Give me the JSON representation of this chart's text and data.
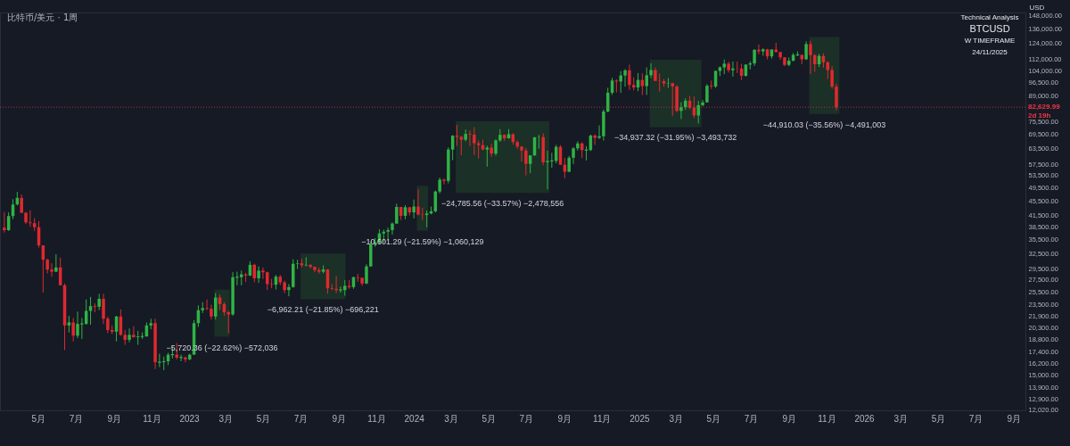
{
  "chart_data": {
    "type": "candlestick",
    "ylabel": "USD",
    "log": true,
    "ylim": [
      12000,
      151000
    ],
    "yticks": [
      {
        "value": 148000,
        "label": "148,000.00"
      },
      {
        "value": 136000,
        "label": "136,000.00"
      },
      {
        "value": 124000,
        "label": "124,000.00"
      },
      {
        "value": 112000,
        "label": "112,000.00"
      },
      {
        "value": 104000,
        "label": "104,000.00"
      },
      {
        "value": 96500,
        "label": "96,500.00"
      },
      {
        "value": 89000,
        "label": "89,000.00"
      },
      {
        "value": 75500,
        "label": "75,500.00"
      },
      {
        "value": 69500,
        "label": "69,500.00"
      },
      {
        "value": 63500,
        "label": "63,500.00"
      },
      {
        "value": 57500,
        "label": "57,500.00"
      },
      {
        "value": 53500,
        "label": "53,500.00"
      },
      {
        "value": 49500,
        "label": "49,500.00"
      },
      {
        "value": 45500,
        "label": "45,500.00"
      },
      {
        "value": 41500,
        "label": "41,500.00"
      },
      {
        "value": 38500,
        "label": "38,500.00"
      },
      {
        "value": 35500,
        "label": "35,500.00"
      },
      {
        "value": 32500,
        "label": "32,500.00"
      },
      {
        "value": 29500,
        "label": "29,500.00"
      },
      {
        "value": 27500,
        "label": "27,500.00"
      },
      {
        "value": 25500,
        "label": "25,500.00"
      },
      {
        "value": 23500,
        "label": "23,500.00"
      },
      {
        "value": 21900,
        "label": "21,900.00"
      },
      {
        "value": 20300,
        "label": "20,300.00"
      },
      {
        "value": 18800,
        "label": "18,800.00"
      },
      {
        "value": 17400,
        "label": "17,400.00"
      },
      {
        "value": 16200,
        "label": "16,200.00"
      },
      {
        "value": 15000,
        "label": "15,000.00"
      },
      {
        "value": 13900,
        "label": "13,900.00"
      },
      {
        "value": 12900,
        "label": "12,900.00"
      },
      {
        "value": 12020,
        "label": "12,020.00"
      }
    ],
    "xlim": [
      "2022-02-28",
      "2026-09-20"
    ],
    "xticks": [
      {
        "value": "2022-05-01",
        "label": "5月"
      },
      {
        "value": "2022-07-01",
        "label": "7月"
      },
      {
        "value": "2022-09-01",
        "label": "9月"
      },
      {
        "value": "2022-11-01",
        "label": "11月"
      },
      {
        "value": "2023-01-01",
        "label": "2023"
      },
      {
        "value": "2023-03-01",
        "label": "3月"
      },
      {
        "value": "2023-05-01",
        "label": "5月"
      },
      {
        "value": "2023-07-01",
        "label": "7月"
      },
      {
        "value": "2023-09-01",
        "label": "9月"
      },
      {
        "value": "2023-11-01",
        "label": "11月"
      },
      {
        "value": "2024-01-01",
        "label": "2024"
      },
      {
        "value": "2024-03-01",
        "label": "3月"
      },
      {
        "value": "2024-05-01",
        "label": "5月"
      },
      {
        "value": "2024-07-01",
        "label": "7月"
      },
      {
        "value": "2024-09-01",
        "label": "9月"
      },
      {
        "value": "2024-11-01",
        "label": "11月"
      },
      {
        "value": "2025-01-01",
        "label": "2025"
      },
      {
        "value": "2025-03-01",
        "label": "3月"
      },
      {
        "value": "2025-05-01",
        "label": "5月"
      },
      {
        "value": "2025-07-01",
        "label": "7月"
      },
      {
        "value": "2025-09-01",
        "label": "9月"
      },
      {
        "value": "2025-11-01",
        "label": "11月"
      },
      {
        "value": "2026-01-01",
        "label": "2026"
      },
      {
        "value": "2026-03-01",
        "label": "3月"
      },
      {
        "value": "2026-05-01",
        "label": "5月"
      },
      {
        "value": "2026-07-01",
        "label": "7月"
      },
      {
        "value": "2026-09-01",
        "label": "9月"
      }
    ],
    "x": [
      "2022-03-07",
      "2022-03-14",
      "2022-03-21",
      "2022-03-28",
      "2022-04-04",
      "2022-04-11",
      "2022-04-18",
      "2022-04-25",
      "2022-05-02",
      "2022-05-09",
      "2022-05-16",
      "2022-05-23",
      "2022-05-30",
      "2022-06-06",
      "2022-06-13",
      "2022-06-20",
      "2022-06-27",
      "2022-07-04",
      "2022-07-11",
      "2022-07-18",
      "2022-07-25",
      "2022-08-01",
      "2022-08-08",
      "2022-08-15",
      "2022-08-22",
      "2022-08-29",
      "2022-09-05",
      "2022-09-12",
      "2022-09-19",
      "2022-09-26",
      "2022-10-03",
      "2022-10-10",
      "2022-10-17",
      "2022-10-24",
      "2022-10-31",
      "2022-11-07",
      "2022-11-14",
      "2022-11-21",
      "2022-11-28",
      "2022-12-05",
      "2022-12-12",
      "2022-12-19",
      "2022-12-26",
      "2023-01-02",
      "2023-01-09",
      "2023-01-16",
      "2023-01-23",
      "2023-01-30",
      "2023-02-06",
      "2023-02-13",
      "2023-02-20",
      "2023-02-27",
      "2023-03-06",
      "2023-03-13",
      "2023-03-20",
      "2023-03-27",
      "2023-04-03",
      "2023-04-10",
      "2023-04-17",
      "2023-04-24",
      "2023-05-01",
      "2023-05-08",
      "2023-05-15",
      "2023-05-22",
      "2023-05-29",
      "2023-06-05",
      "2023-06-12",
      "2023-06-19",
      "2023-06-26",
      "2023-07-03",
      "2023-07-10",
      "2023-07-17",
      "2023-07-24",
      "2023-07-31",
      "2023-08-07",
      "2023-08-14",
      "2023-08-21",
      "2023-08-28",
      "2023-09-04",
      "2023-09-11",
      "2023-09-18",
      "2023-09-25",
      "2023-10-02",
      "2023-10-09",
      "2023-10-16",
      "2023-10-23",
      "2023-10-30",
      "2023-11-06",
      "2023-11-13",
      "2023-11-20",
      "2023-11-27",
      "2023-12-04",
      "2023-12-11",
      "2023-12-18",
      "2023-12-25",
      "2024-01-01",
      "2024-01-08",
      "2024-01-15",
      "2024-01-22",
      "2024-01-29",
      "2024-02-05",
      "2024-02-12",
      "2024-02-19",
      "2024-02-26",
      "2024-03-04",
      "2024-03-11",
      "2024-03-18",
      "2024-03-25",
      "2024-04-01",
      "2024-04-08",
      "2024-04-15",
      "2024-04-22",
      "2024-04-29",
      "2024-05-06",
      "2024-05-13",
      "2024-05-20",
      "2024-05-27",
      "2024-06-03",
      "2024-06-10",
      "2024-06-17",
      "2024-06-24",
      "2024-07-01",
      "2024-07-08",
      "2024-07-15",
      "2024-07-22",
      "2024-07-29",
      "2024-08-05",
      "2024-08-12",
      "2024-08-19",
      "2024-08-26",
      "2024-09-02",
      "2024-09-09",
      "2024-09-16",
      "2024-09-23",
      "2024-09-30",
      "2024-10-07",
      "2024-10-14",
      "2024-10-21",
      "2024-10-28",
      "2024-11-04",
      "2024-11-11",
      "2024-11-18",
      "2024-11-25",
      "2024-12-02",
      "2024-12-09",
      "2024-12-16",
      "2024-12-23",
      "2024-12-30",
      "2025-01-06",
      "2025-01-13",
      "2025-01-20",
      "2025-01-27",
      "2025-02-03",
      "2025-02-10",
      "2025-02-17",
      "2025-02-24",
      "2025-03-03",
      "2025-03-10",
      "2025-03-17",
      "2025-03-24",
      "2025-03-31",
      "2025-04-07",
      "2025-04-14",
      "2025-04-21",
      "2025-04-28",
      "2025-05-05",
      "2025-05-12",
      "2025-05-19",
      "2025-05-26",
      "2025-06-02",
      "2025-06-09",
      "2025-06-16",
      "2025-06-23",
      "2025-06-30",
      "2025-07-07",
      "2025-07-14",
      "2025-07-21",
      "2025-07-28",
      "2025-08-04",
      "2025-08-11",
      "2025-08-18",
      "2025-08-25",
      "2025-09-01",
      "2025-09-08",
      "2025-09-15",
      "2025-09-22",
      "2025-09-29",
      "2025-10-06",
      "2025-10-13",
      "2025-10-20",
      "2025-10-27",
      "2025-11-03",
      "2025-11-10",
      "2025-11-17"
    ],
    "ohlc": [
      [
        38400,
        42400,
        37200,
        37800
      ],
      [
        37800,
        42300,
        37600,
        41300
      ],
      [
        41300,
        46000,
        40500,
        44500
      ],
      [
        44500,
        48200,
        44200,
        46400
      ],
      [
        46400,
        47400,
        42100,
        42200
      ],
      [
        42200,
        42400,
        39300,
        39700
      ],
      [
        39700,
        42900,
        38600,
        39500
      ],
      [
        39500,
        40800,
        37600,
        38500
      ],
      [
        38500,
        40000,
        33800,
        34300
      ],
      [
        34300,
        34300,
        25400,
        31300
      ],
      [
        31300,
        31500,
        28700,
        29400
      ],
      [
        29400,
        30600,
        28100,
        29000
      ],
      [
        29000,
        32400,
        29000,
        29800
      ],
      [
        29800,
        31700,
        26600,
        26600
      ],
      [
        26600,
        26900,
        17600,
        20600
      ],
      [
        20600,
        21900,
        19700,
        21000
      ],
      [
        21000,
        21600,
        18600,
        19300
      ],
      [
        19300,
        22500,
        19000,
        20800
      ],
      [
        20800,
        21600,
        18900,
        20800
      ],
      [
        20800,
        24300,
        20700,
        22600
      ],
      [
        22600,
        24700,
        20700,
        23300
      ],
      [
        23300,
        23700,
        22400,
        23200
      ],
      [
        23200,
        25200,
        22700,
        24400
      ],
      [
        24400,
        25200,
        20800,
        21500
      ],
      [
        21500,
        21800,
        19600,
        20000
      ],
      [
        20000,
        20600,
        19500,
        19800
      ],
      [
        19800,
        21900,
        18600,
        21800
      ],
      [
        21800,
        22800,
        19300,
        19400
      ],
      [
        19400,
        20000,
        18200,
        18800
      ],
      [
        18800,
        20200,
        18500,
        19400
      ],
      [
        19400,
        20500,
        19100,
        19100
      ],
      [
        19100,
        19900,
        18200,
        19200
      ],
      [
        19200,
        19700,
        18900,
        19200
      ],
      [
        19200,
        21000,
        19200,
        20600
      ],
      [
        20600,
        21500,
        20100,
        20900
      ],
      [
        20900,
        21500,
        15600,
        16300
      ],
      [
        16300,
        17200,
        15800,
        16300
      ],
      [
        16300,
        16900,
        15500,
        16400
      ],
      [
        16400,
        17300,
        16000,
        17100
      ],
      [
        17100,
        18000,
        16700,
        17100
      ],
      [
        17100,
        18400,
        16600,
        16800
      ],
      [
        16800,
        17100,
        16400,
        16800
      ],
      [
        16800,
        16900,
        16300,
        16600
      ],
      [
        16600,
        17200,
        16500,
        17100
      ],
      [
        17100,
        21300,
        17100,
        20900
      ],
      [
        20900,
        23400,
        20400,
        22700
      ],
      [
        22700,
        23900,
        22300,
        23000
      ],
      [
        23000,
        24300,
        22700,
        22900
      ],
      [
        22900,
        23500,
        21400,
        21800
      ],
      [
        21800,
        25300,
        21400,
        24600
      ],
      [
        24600,
        25100,
        22700,
        23600
      ],
      [
        23600,
        23900,
        21900,
        22400
      ],
      [
        22400,
        22600,
        19600,
        22100
      ],
      [
        22100,
        28900,
        21900,
        28000
      ],
      [
        28000,
        29000,
        26600,
        28000
      ],
      [
        28000,
        29200,
        26600,
        28500
      ],
      [
        28500,
        28800,
        27200,
        28300
      ],
      [
        28300,
        31000,
        28200,
        30300
      ],
      [
        30300,
        30500,
        27100,
        27800
      ],
      [
        27800,
        30000,
        27000,
        29200
      ],
      [
        29200,
        29800,
        27700,
        28900
      ],
      [
        28900,
        29000,
        25800,
        26800
      ],
      [
        26800,
        27700,
        26100,
        26700
      ],
      [
        26700,
        28400,
        25900,
        28100
      ],
      [
        28100,
        28400,
        26600,
        27100
      ],
      [
        27100,
        27400,
        25300,
        25800
      ],
      [
        25800,
        26800,
        24800,
        26300
      ],
      [
        26300,
        31400,
        26200,
        30500
      ],
      [
        30500,
        31300,
        29500,
        30600
      ],
      [
        30600,
        31500,
        29800,
        30200
      ],
      [
        30200,
        31800,
        30000,
        30300
      ],
      [
        30300,
        30400,
        29600,
        29900
      ],
      [
        29900,
        30000,
        28900,
        29300
      ],
      [
        29300,
        29800,
        28600,
        29000
      ],
      [
        29000,
        30200,
        28700,
        29400
      ],
      [
        29400,
        29500,
        25200,
        26100
      ],
      [
        26100,
        26800,
        25800,
        26000
      ],
      [
        26000,
        28200,
        25300,
        25800
      ],
      [
        25800,
        26400,
        25400,
        25800
      ],
      [
        25800,
        27500,
        24900,
        26500
      ],
      [
        26500,
        27500,
        26000,
        26300
      ],
      [
        26300,
        28100,
        26000,
        28000
      ],
      [
        28000,
        28600,
        27200,
        27900
      ],
      [
        27900,
        27900,
        26500,
        26900
      ],
      [
        26900,
        30400,
        26800,
        30000
      ],
      [
        30000,
        35200,
        29900,
        34500
      ],
      [
        34500,
        35900,
        34000,
        35000
      ],
      [
        35000,
        38000,
        34500,
        37000
      ],
      [
        37000,
        37900,
        34800,
        37400
      ],
      [
        37400,
        38400,
        35600,
        37800
      ],
      [
        37800,
        39700,
        36700,
        39400
      ],
      [
        39400,
        44700,
        39300,
        43800
      ],
      [
        43800,
        43800,
        40300,
        41400
      ],
      [
        41400,
        44300,
        40500,
        43700
      ],
      [
        43700,
        43800,
        41500,
        42300
      ],
      [
        42300,
        45900,
        40700,
        43900
      ],
      [
        43900,
        49000,
        41500,
        41700
      ],
      [
        41700,
        43500,
        40300,
        41600
      ],
      [
        41600,
        42800,
        38500,
        42000
      ],
      [
        42000,
        43900,
        41800,
        42600
      ],
      [
        42600,
        48600,
        42300,
        48300
      ],
      [
        48300,
        52800,
        47700,
        52100
      ],
      [
        52100,
        52500,
        50600,
        51700
      ],
      [
        51700,
        64000,
        50900,
        63100
      ],
      [
        63100,
        69200,
        59000,
        68900
      ],
      [
        68900,
        73800,
        64600,
        68400
      ],
      [
        68400,
        68900,
        60800,
        67200
      ],
      [
        67200,
        71700,
        66500,
        69700
      ],
      [
        69700,
        71300,
        64500,
        69400
      ],
      [
        69400,
        72800,
        60900,
        65700
      ],
      [
        65700,
        66900,
        59600,
        64900
      ],
      [
        64900,
        67200,
        62800,
        63100
      ],
      [
        63100,
        64700,
        56600,
        63900
      ],
      [
        63900,
        65500,
        60200,
        61500
      ],
      [
        61500,
        67400,
        60700,
        66900
      ],
      [
        66900,
        71900,
        66300,
        69300
      ],
      [
        69300,
        69500,
        66700,
        67800
      ],
      [
        67800,
        71900,
        67600,
        69600
      ],
      [
        69600,
        70000,
        65100,
        66200
      ],
      [
        66200,
        66900,
        63400,
        64300
      ],
      [
        64300,
        64500,
        58400,
        62700
      ],
      [
        62700,
        63800,
        53500,
        57600
      ],
      [
        57600,
        60800,
        54300,
        60800
      ],
      [
        60800,
        68400,
        60600,
        68200
      ],
      [
        68200,
        69300,
        63400,
        68300
      ],
      [
        68300,
        70000,
        57200,
        58200
      ],
      [
        58200,
        62700,
        49000,
        58700
      ],
      [
        58700,
        61800,
        56200,
        58700
      ],
      [
        58700,
        65000,
        57800,
        64200
      ],
      [
        64200,
        64900,
        57200,
        57300
      ],
      [
        57300,
        59800,
        52600,
        54800
      ],
      [
        54800,
        60600,
        54600,
        59900
      ],
      [
        59900,
        64100,
        57600,
        63600
      ],
      [
        63600,
        66500,
        62700,
        65600
      ],
      [
        65600,
        66100,
        59800,
        62900
      ],
      [
        62900,
        64500,
        58900,
        62900
      ],
      [
        62900,
        69400,
        62500,
        69000
      ],
      [
        69000,
        69500,
        65000,
        68000
      ],
      [
        68000,
        73600,
        67500,
        68700
      ],
      [
        68700,
        81500,
        66800,
        80400
      ],
      [
        80400,
        93500,
        80000,
        90600
      ],
      [
        90600,
        99600,
        89400,
        97900
      ],
      [
        97900,
        98700,
        90800,
        97300
      ],
      [
        97300,
        104000,
        90500,
        101100
      ],
      [
        101100,
        105300,
        94200,
        104500
      ],
      [
        104500,
        108300,
        92200,
        95200
      ],
      [
        95200,
        99900,
        92000,
        93700
      ],
      [
        93700,
        102700,
        91500,
        98300
      ],
      [
        98300,
        102500,
        89300,
        94500
      ],
      [
        94500,
        106400,
        89300,
        101300
      ],
      [
        101300,
        109300,
        99500,
        104700
      ],
      [
        104700,
        106400,
        97500,
        97700
      ],
      [
        97700,
        102400,
        91200,
        97500
      ],
      [
        97500,
        98800,
        94100,
        96100
      ],
      [
        96100,
        99500,
        93400,
        96300
      ],
      [
        96300,
        96500,
        78200,
        94300
      ],
      [
        94300,
        95000,
        80100,
        80700
      ],
      [
        80700,
        85300,
        76600,
        82600
      ],
      [
        82600,
        87400,
        81200,
        86100
      ],
      [
        86100,
        88800,
        81600,
        82400
      ],
      [
        82400,
        88500,
        77100,
        78400
      ],
      [
        78400,
        86000,
        74500,
        83700
      ],
      [
        83700,
        86500,
        83100,
        85200
      ],
      [
        85200,
        95700,
        85100,
        94700
      ],
      [
        94700,
        97900,
        92800,
        94300
      ],
      [
        94300,
        104300,
        93400,
        104100
      ],
      [
        104100,
        107100,
        100700,
        106500
      ],
      [
        106500,
        112000,
        102000,
        109000
      ],
      [
        109000,
        110400,
        103100,
        104600
      ],
      [
        104600,
        110500,
        100400,
        105700
      ],
      [
        105700,
        110400,
        102700,
        105600
      ],
      [
        105600,
        108900,
        98200,
        100900
      ],
      [
        100900,
        108500,
        100400,
        108400
      ],
      [
        108400,
        110600,
        105100,
        109200
      ],
      [
        109200,
        119500,
        107500,
        119100
      ],
      [
        119100,
        123200,
        115700,
        117900
      ],
      [
        117900,
        120200,
        114700,
        119400
      ],
      [
        119400,
        119800,
        112000,
        114200
      ],
      [
        114200,
        119300,
        112600,
        119300
      ],
      [
        119300,
        124500,
        117200,
        117400
      ],
      [
        117400,
        117600,
        111700,
        113500
      ],
      [
        113500,
        113600,
        107300,
        108200
      ],
      [
        108200,
        113400,
        107300,
        111100
      ],
      [
        111100,
        116700,
        110600,
        115300
      ],
      [
        115300,
        117900,
        114400,
        115300
      ],
      [
        115300,
        115400,
        108600,
        112100
      ],
      [
        112100,
        125700,
        111600,
        123500
      ],
      [
        123500,
        126200,
        102000,
        115100
      ],
      [
        115100,
        115900,
        103500,
        108600
      ],
      [
        108600,
        116000,
        106700,
        114500
      ],
      [
        114500,
        116400,
        106300,
        110000
      ],
      [
        110000,
        110600,
        98900,
        104700
      ],
      [
        104700,
        107500,
        93000,
        94170.77
      ],
      [
        94170.77,
        95950,
        81000,
        82629.99
      ]
    ],
    "bands": [
      {
        "axis": "x",
        "from": "2023-02-11",
        "to": "2023-03-08",
        "color": "#1c3327",
        "label": "−5,720.36 (−22.62%) −572,036"
      },
      {
        "axis": "x",
        "from": "2023-07-01",
        "to": "2023-09-12",
        "color": "#1c3327",
        "label": "−6,962.21 (−21.85%) −696,221"
      },
      {
        "axis": "x",
        "from": "2024-01-06",
        "to": "2024-01-24",
        "color": "#1c3327",
        "label": "−10,601.29 (−21.59%) −1,060,129"
      },
      {
        "axis": "x",
        "from": "2024-03-09",
        "to": "2024-08-08",
        "color": "#1c3327",
        "label": "−24,785.56 (−33.57%) −2,478,556"
      },
      {
        "axis": "x",
        "from": "2025-01-18",
        "to": "2025-04-12",
        "color": "#1c3327",
        "label": "−34,937.32 (−31.95%) −3,493,732"
      },
      {
        "axis": "x",
        "from": "2025-10-04",
        "to": "2025-11-22",
        "color": "#1c3327",
        "label": "−44,910.03 (−35.56%) −4,491,003"
      }
    ],
    "ref_lines": [
      {
        "axis": "y",
        "value": 82629.99,
        "label": "82,629.99\n2d 19h",
        "color": "#f23645",
        "line_style": "dotted"
      }
    ],
    "annotations": [
      "Technical Analysis",
      "BTCUSD",
      "W TIMEFRAME",
      "24/11/2025",
      "比特币/美元 · 1周"
    ]
  }
}
